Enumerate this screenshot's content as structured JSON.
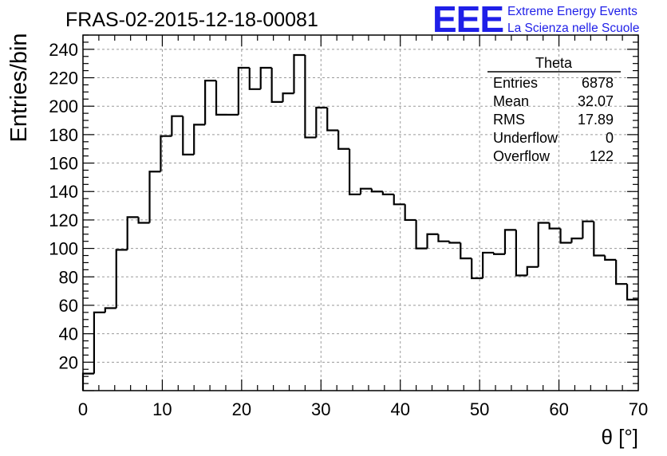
{
  "chart_data": {
    "type": "histogram",
    "title": "FRAS-02-2015-12-18-00081",
    "xlabel": "θ [°]",
    "ylabel": "Entries/bin",
    "xlim": [
      0,
      70
    ],
    "ylim": [
      0,
      250
    ],
    "x_ticks": [
      0,
      10,
      20,
      30,
      40,
      50,
      60,
      70
    ],
    "y_ticks": [
      20,
      40,
      60,
      80,
      100,
      120,
      140,
      160,
      180,
      200,
      220,
      240
    ],
    "grid": true,
    "bin_edges": [
      0,
      1.4,
      2.8,
      4.2,
      5.6,
      7.0,
      8.4,
      9.8,
      11.2,
      12.6,
      14.0,
      15.4,
      16.8,
      18.2,
      19.6,
      21.0,
      22.4,
      23.8,
      25.2,
      26.6,
      28.0,
      29.4,
      30.8,
      32.2,
      33.6,
      35.0,
      36.4,
      37.8,
      39.2,
      40.6,
      42.0,
      43.4,
      44.8,
      46.2,
      47.6,
      49.0,
      50.4,
      51.8,
      53.2,
      54.6,
      56.0,
      57.4,
      58.8,
      60.2,
      61.6,
      63.0,
      64.4,
      65.8,
      67.2,
      68.6,
      70.0
    ],
    "values": [
      12,
      55,
      58,
      99,
      122,
      118,
      154,
      179,
      193,
      166,
      187,
      218,
      194,
      194,
      227,
      212,
      227,
      203,
      209,
      236,
      178,
      199,
      183,
      170,
      138,
      142,
      140,
      138,
      131,
      120,
      100,
      110,
      105,
      104,
      93,
      79,
      97,
      96,
      113,
      81,
      87,
      118,
      114,
      104,
      107,
      119,
      95,
      92,
      75,
      64
    ],
    "stats_box": {
      "title": "Theta",
      "rows": [
        {
          "label": "Entries",
          "value": "6878"
        },
        {
          "label": "Mean",
          "value": "32.07"
        },
        {
          "label": "RMS",
          "value": "17.89"
        },
        {
          "label": "Underflow",
          "value": "0"
        },
        {
          "label": "Overflow",
          "value": "122"
        }
      ]
    }
  },
  "logo": {
    "text": "EEE",
    "line1": "Extreme Energy Events",
    "line2": "La Scienza nelle Scuole",
    "color": "#1f1fe8"
  }
}
